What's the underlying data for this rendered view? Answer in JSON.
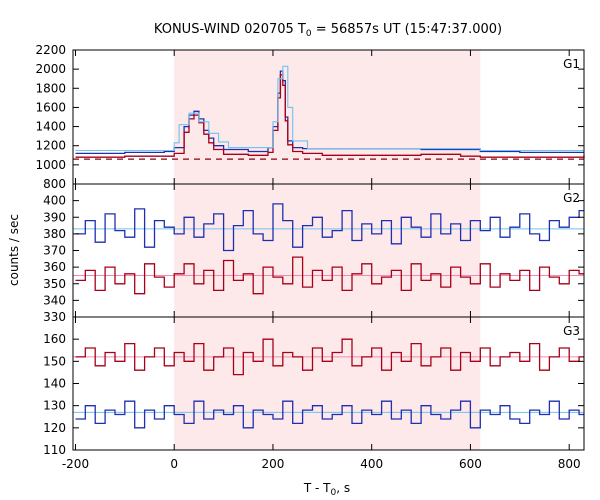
{
  "chart_data": {
    "type": "line",
    "title_main": "KONUS-WIND 020705 T",
    "title_sub": "0",
    "title_rest": " = 56857s UT (15:47:37.000)",
    "xlabel_main": "T - T",
    "xlabel_sub": "0",
    "xlabel_rest": ", s",
    "ylabel": "counts / sec",
    "xlim": [
      -205,
      830
    ],
    "xticks": [
      -200,
      0,
      200,
      400,
      600,
      800
    ],
    "xtick_labels": [
      "-200",
      "0",
      "200",
      "400",
      "600",
      "800"
    ],
    "shaded_interval": [
      0,
      620
    ],
    "colors": {
      "shade": "#fde8ea",
      "blue": "#1f2fb0",
      "red": "#a80018",
      "lightblue": "#6ec3f0",
      "pink": "#f08cb4",
      "dark_red": "#8b0010"
    },
    "panels": [
      {
        "name": "G1",
        "ylim": [
          800,
          2200
        ],
        "yticks": [
          800,
          1000,
          1200,
          1400,
          1600,
          1800,
          2000,
          2200
        ],
        "ytick_labels": [
          "800",
          "1000",
          "1200",
          "1400",
          "1600",
          "1800",
          "2000",
          "2200"
        ],
        "dashed_background": 1060,
        "series": [
          {
            "color": "blue",
            "x": [
              -200,
              -100,
              -20,
              0,
              20,
              30,
              40,
              50,
              60,
              70,
              80,
              100,
              150,
              190,
              200,
              210,
              215,
              220,
              225,
              230,
              240,
              260,
              300,
              400,
              500,
              580,
              620,
              700,
              830
            ],
            "y": [
              1120,
              1130,
              1140,
              1180,
              1400,
              1520,
              1560,
              1480,
              1360,
              1280,
              1200,
              1160,
              1140,
              1180,
              1400,
              1750,
              1980,
              1880,
              1500,
              1250,
              1180,
              1170,
              1170,
              1170,
              1160,
              1160,
              1140,
              1130,
              1130
            ]
          },
          {
            "color": "red",
            "x": [
              -200,
              -100,
              -20,
              0,
              20,
              30,
              40,
              50,
              60,
              70,
              80,
              100,
              150,
              190,
              200,
              210,
              215,
              220,
              225,
              230,
              240,
              260,
              300,
              400,
              500,
              580,
              620,
              700,
              830
            ],
            "y": [
              1080,
              1090,
              1090,
              1120,
              1340,
              1480,
              1520,
              1440,
              1320,
              1230,
              1160,
              1110,
              1100,
              1130,
              1360,
              1700,
              1940,
              1830,
              1460,
              1210,
              1140,
              1120,
              1100,
              1100,
              1110,
              1090,
              1080,
              1080,
              1100
            ]
          },
          {
            "color": "lightblue",
            "x": [
              -200,
              -20,
              0,
              10,
              30,
              50,
              70,
              90,
              110,
              190,
              200,
              210,
              220,
              230,
              240,
              270,
              620,
              830
            ],
            "y": [
              1150,
              1150,
              1230,
              1420,
              1540,
              1450,
              1330,
              1240,
              1180,
              1180,
              1450,
              1900,
              2030,
              1600,
              1250,
              1170,
              1150,
              1150
            ]
          }
        ]
      },
      {
        "name": "G2",
        "ylim": [
          330,
          410
        ],
        "yticks": [
          330,
          340,
          350,
          360,
          370,
          380,
          390,
          400
        ],
        "ytick_labels": [
          "330",
          "340",
          "350",
          "360",
          "370",
          "380",
          "390",
          "400"
        ],
        "fit_lines": [
          {
            "color": "lightblue",
            "value": 383
          },
          {
            "color": "pink",
            "value": 355
          }
        ],
        "series": [
          {
            "color": "blue",
            "x": [
              -200,
              -180,
              -160,
              -140,
              -120,
              -100,
              -80,
              -60,
              -40,
              -20,
              0,
              20,
              40,
              60,
              80,
              100,
              120,
              140,
              160,
              180,
              200,
              220,
              240,
              260,
              280,
              300,
              320,
              340,
              360,
              380,
              400,
              420,
              440,
              460,
              480,
              500,
              520,
              540,
              560,
              580,
              600,
              620,
              640,
              660,
              680,
              700,
              720,
              740,
              760,
              780,
              800,
              820
            ],
            "y": [
              380,
              388,
              375,
              392,
              382,
              378,
              395,
              372,
              388,
              384,
              380,
              390,
              378,
              386,
              392,
              370,
              385,
              394,
              380,
              376,
              398,
              388,
              372,
              385,
              390,
              378,
              382,
              394,
              376,
              386,
              380,
              388,
              374,
              390,
              384,
              378,
              392,
              380,
              386,
              376,
              388,
              382,
              390,
              378,
              384,
              392,
              380,
              376,
              388,
              384,
              390,
              394
            ]
          },
          {
            "color": "red",
            "x": [
              -200,
              -180,
              -160,
              -140,
              -120,
              -100,
              -80,
              -60,
              -40,
              -20,
              0,
              20,
              40,
              60,
              80,
              100,
              120,
              140,
              160,
              180,
              200,
              220,
              240,
              260,
              280,
              300,
              320,
              340,
              360,
              380,
              400,
              420,
              440,
              460,
              480,
              500,
              520,
              540,
              560,
              580,
              600,
              620,
              640,
              660,
              680,
              700,
              720,
              740,
              760,
              780,
              800,
              820
            ],
            "y": [
              352,
              358,
              346,
              360,
              350,
              356,
              344,
              362,
              354,
              348,
              356,
              362,
              350,
              358,
              346,
              364,
              352,
              356,
              344,
              360,
              354,
              350,
              366,
              348,
              358,
              352,
              360,
              346,
              356,
              362,
              350,
              354,
              358,
              346,
              362,
              352,
              356,
              348,
              360,
              354,
              350,
              362,
              348,
              356,
              352,
              358,
              346,
              360,
              354,
              350,
              358,
              356
            ]
          }
        ]
      },
      {
        "name": "G3",
        "ylim": [
          110,
          170
        ],
        "yticks": [
          110,
          120,
          130,
          140,
          150,
          160
        ],
        "ytick_labels": [
          "110",
          "120",
          "130",
          "140",
          "150",
          "160"
        ],
        "fit_lines": [
          {
            "color": "pink",
            "value": 152
          },
          {
            "color": "lightblue",
            "value": 127
          }
        ],
        "series": [
          {
            "color": "red",
            "x": [
              -200,
              -180,
              -160,
              -140,
              -120,
              -100,
              -80,
              -60,
              -40,
              -20,
              0,
              20,
              40,
              60,
              80,
              100,
              120,
              140,
              160,
              180,
              200,
              220,
              240,
              260,
              280,
              300,
              320,
              340,
              360,
              380,
              400,
              420,
              440,
              460,
              480,
              500,
              520,
              540,
              560,
              580,
              600,
              620,
              640,
              660,
              680,
              700,
              720,
              740,
              760,
              780,
              800,
              820
            ],
            "y": [
              152,
              156,
              148,
              154,
              150,
              158,
              146,
              152,
              156,
              148,
              154,
              150,
              158,
              146,
              152,
              156,
              144,
              154,
              150,
              160,
              148,
              154,
              152,
              146,
              156,
              150,
              154,
              160,
              148,
              152,
              156,
              146,
              154,
              150,
              158,
              148,
              152,
              156,
              146,
              154,
              150,
              156,
              148,
              152,
              154,
              150,
              158,
              146,
              152,
              156,
              150,
              152
            ]
          },
          {
            "color": "blue",
            "x": [
              -200,
              -180,
              -160,
              -140,
              -120,
              -100,
              -80,
              -60,
              -40,
              -20,
              0,
              20,
              40,
              60,
              80,
              100,
              120,
              140,
              160,
              180,
              200,
              220,
              240,
              260,
              280,
              300,
              320,
              340,
              360,
              380,
              400,
              420,
              440,
              460,
              480,
              500,
              520,
              540,
              560,
              580,
              600,
              620,
              640,
              660,
              680,
              700,
              720,
              740,
              760,
              780,
              800,
              820
            ],
            "y": [
              124,
              130,
              122,
              128,
              126,
              132,
              120,
              128,
              124,
              130,
              126,
              122,
              132,
              124,
              128,
              126,
              130,
              120,
              128,
              126,
              124,
              132,
              122,
              128,
              130,
              124,
              126,
              130,
              122,
              128,
              126,
              132,
              124,
              128,
              122,
              130,
              126,
              124,
              128,
              132,
              120,
              128,
              126,
              130,
              124,
              122,
              128,
              126,
              132,
              124,
              128,
              126
            ]
          }
        ]
      }
    ]
  }
}
